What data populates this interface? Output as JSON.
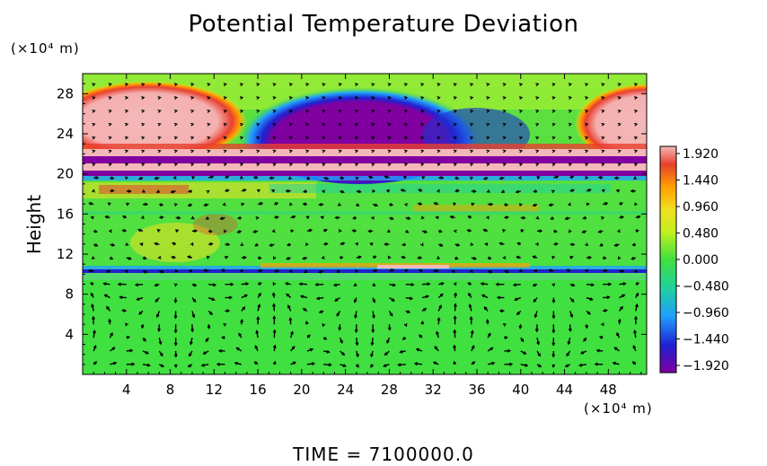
{
  "chart_data": {
    "type": "heatmap",
    "title": "Potential Temperature Deviation",
    "ylabel": "Height",
    "x_unit_label": "(×10⁴ m)",
    "y_unit_label": "(×10⁴ m)",
    "footer": "TIME = 7100000.0",
    "xlim": [
      0,
      51.5
    ],
    "ylim": [
      0,
      30
    ],
    "x_ticks": [
      4,
      8,
      12,
      16,
      20,
      24,
      28,
      32,
      36,
      40,
      44,
      48
    ],
    "y_ticks": [
      4,
      8,
      12,
      16,
      20,
      24,
      28
    ],
    "colorbar": {
      "labels": [
        "1.920",
        "1.440",
        "0.960",
        "0.480",
        "0.000",
        "−0.480",
        "−0.960",
        "−1.440",
        "−1.920"
      ],
      "values": [
        1.92,
        1.44,
        0.96,
        0.48,
        0.0,
        -0.48,
        -0.96,
        -1.44,
        -1.92
      ],
      "colors": [
        "#f4b8b8",
        "#e8402a",
        "#ffa000",
        "#f0e020",
        "#40e040",
        "#20d0a0",
        "#20a0ff",
        "#2020d0",
        "#8000a0"
      ]
    },
    "overlay": "velocity vectors (arrows)"
  }
}
